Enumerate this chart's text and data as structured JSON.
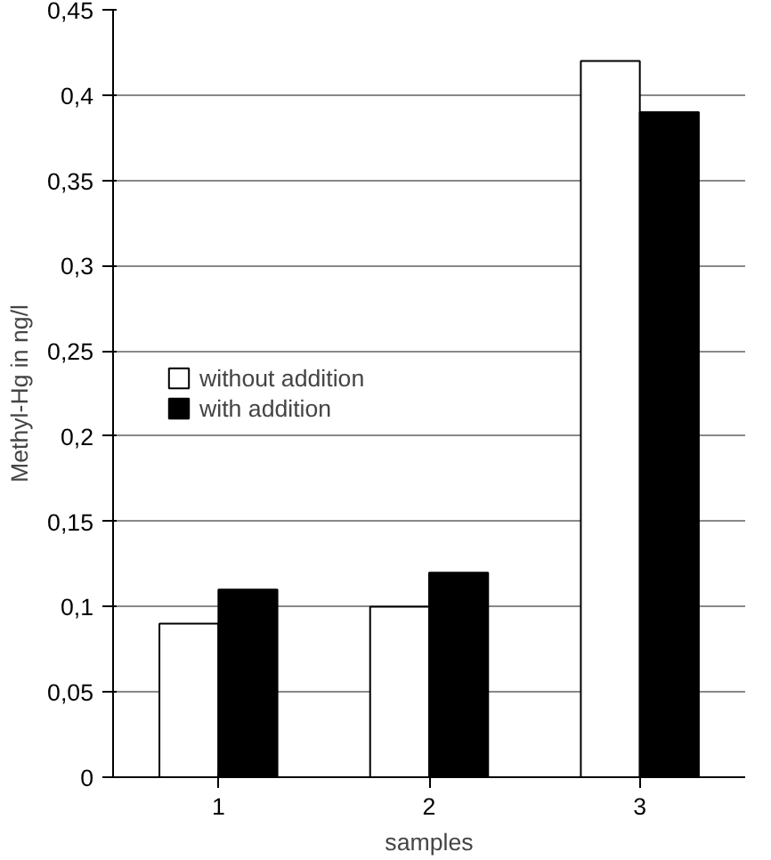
{
  "chart_data": {
    "type": "bar",
    "xlabel": "samples",
    "ylabel": "Methyl-Hg in ng/l",
    "categories": [
      "1",
      "2",
      "3"
    ],
    "series": [
      {
        "name": "without addition",
        "color": "#ffffff",
        "values": [
          0.09,
          0.1,
          0.42
        ]
      },
      {
        "name": "with addition",
        "color": "#000000",
        "values": [
          0.11,
          0.12,
          0.39
        ]
      }
    ],
    "ylim": [
      0,
      0.45
    ],
    "yticks": [
      0,
      {
        "value": 0.05,
        "label": "0,05"
      },
      {
        "value": 0.1,
        "label": "0,1"
      },
      {
        "value": 0.15,
        "label": "0,15"
      },
      {
        "value": 0.2,
        "label": "0,2"
      },
      {
        "value": 0.25,
        "label": "0,25"
      },
      {
        "value": 0.3,
        "label": "0,3"
      },
      {
        "value": 0.35,
        "label": "0,35"
      },
      {
        "value": 0.4,
        "label": "0,4"
      },
      {
        "value": 0.45,
        "label": "0,45"
      }
    ],
    "grid": "y",
    "legend": "left"
  }
}
